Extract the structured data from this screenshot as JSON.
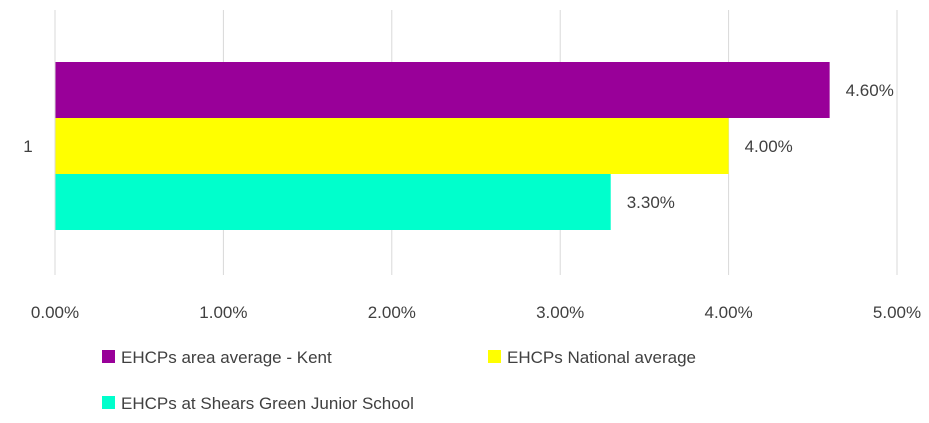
{
  "chart_data": {
    "type": "bar",
    "orientation": "horizontal",
    "categories": [
      "1"
    ],
    "series": [
      {
        "name": "EHCPs area average - Kent",
        "values": [
          0.046
        ],
        "label": "4.60%",
        "color": "#990099"
      },
      {
        "name": "EHCPs National average",
        "values": [
          0.04
        ],
        "label": "4.00%",
        "color": "#FFFF00"
      },
      {
        "name": "EHCPs at Shears Green Junior School",
        "values": [
          0.033
        ],
        "label": "3.30%",
        "color": "#00FFCC"
      }
    ],
    "x_ticks": [
      "0.00%",
      "1.00%",
      "2.00%",
      "3.00%",
      "4.00%",
      "5.00%"
    ],
    "xlim": [
      0,
      0.05
    ],
    "grid": true,
    "legend_position": "bottom",
    "title": "",
    "xlabel": "",
    "ylabel": ""
  }
}
